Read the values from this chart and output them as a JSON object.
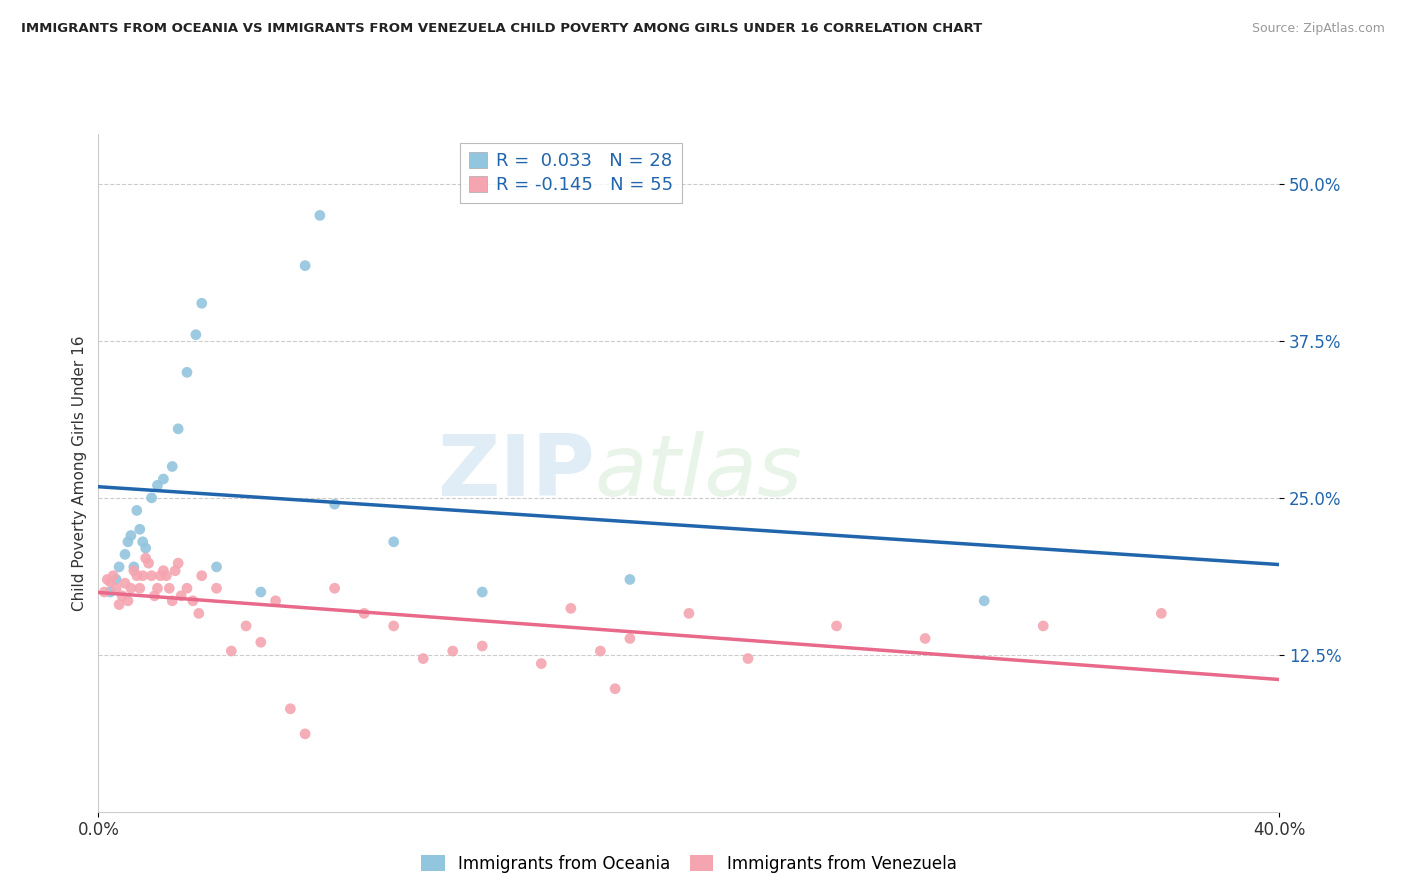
{
  "title": "IMMIGRANTS FROM OCEANIA VS IMMIGRANTS FROM VENEZUELA CHILD POVERTY AMONG GIRLS UNDER 16 CORRELATION CHART",
  "source": "Source: ZipAtlas.com",
  "ylabel": "Child Poverty Among Girls Under 16",
  "xlim": [
    0.0,
    0.4
  ],
  "ylim": [
    0.0,
    0.54
  ],
  "watermark_zip": "ZIP",
  "watermark_atlas": "atlas",
  "legend_line1": "R =  0.033   N = 28",
  "legend_line2": "R = -0.145   N = 55",
  "oceania_color": "#92c5de",
  "venezuela_color": "#f4a5b0",
  "oceania_line_color": "#2166ac",
  "venezuela_line_color": "#e8698a",
  "oceania_scatter": [
    [
      0.004,
      0.175
    ],
    [
      0.006,
      0.185
    ],
    [
      0.007,
      0.195
    ],
    [
      0.009,
      0.205
    ],
    [
      0.01,
      0.215
    ],
    [
      0.011,
      0.22
    ],
    [
      0.012,
      0.195
    ],
    [
      0.013,
      0.24
    ],
    [
      0.014,
      0.225
    ],
    [
      0.015,
      0.215
    ],
    [
      0.016,
      0.21
    ],
    [
      0.018,
      0.25
    ],
    [
      0.02,
      0.26
    ],
    [
      0.022,
      0.265
    ],
    [
      0.025,
      0.275
    ],
    [
      0.027,
      0.305
    ],
    [
      0.03,
      0.35
    ],
    [
      0.033,
      0.38
    ],
    [
      0.035,
      0.405
    ],
    [
      0.04,
      0.195
    ],
    [
      0.055,
      0.175
    ],
    [
      0.07,
      0.435
    ],
    [
      0.075,
      0.475
    ],
    [
      0.08,
      0.245
    ],
    [
      0.1,
      0.215
    ],
    [
      0.13,
      0.175
    ],
    [
      0.18,
      0.185
    ],
    [
      0.3,
      0.168
    ]
  ],
  "venezuela_scatter": [
    [
      0.002,
      0.175
    ],
    [
      0.003,
      0.185
    ],
    [
      0.004,
      0.183
    ],
    [
      0.005,
      0.188
    ],
    [
      0.006,
      0.178
    ],
    [
      0.007,
      0.165
    ],
    [
      0.008,
      0.172
    ],
    [
      0.009,
      0.182
    ],
    [
      0.01,
      0.168
    ],
    [
      0.011,
      0.178
    ],
    [
      0.012,
      0.192
    ],
    [
      0.013,
      0.188
    ],
    [
      0.014,
      0.178
    ],
    [
      0.015,
      0.188
    ],
    [
      0.016,
      0.202
    ],
    [
      0.017,
      0.198
    ],
    [
      0.018,
      0.188
    ],
    [
      0.019,
      0.172
    ],
    [
      0.02,
      0.178
    ],
    [
      0.021,
      0.188
    ],
    [
      0.022,
      0.192
    ],
    [
      0.023,
      0.188
    ],
    [
      0.024,
      0.178
    ],
    [
      0.025,
      0.168
    ],
    [
      0.026,
      0.192
    ],
    [
      0.027,
      0.198
    ],
    [
      0.028,
      0.172
    ],
    [
      0.03,
      0.178
    ],
    [
      0.032,
      0.168
    ],
    [
      0.034,
      0.158
    ],
    [
      0.035,
      0.188
    ],
    [
      0.04,
      0.178
    ],
    [
      0.045,
      0.128
    ],
    [
      0.05,
      0.148
    ],
    [
      0.055,
      0.135
    ],
    [
      0.06,
      0.168
    ],
    [
      0.065,
      0.082
    ],
    [
      0.07,
      0.062
    ],
    [
      0.08,
      0.178
    ],
    [
      0.09,
      0.158
    ],
    [
      0.1,
      0.148
    ],
    [
      0.11,
      0.122
    ],
    [
      0.12,
      0.128
    ],
    [
      0.13,
      0.132
    ],
    [
      0.15,
      0.118
    ],
    [
      0.16,
      0.162
    ],
    [
      0.17,
      0.128
    ],
    [
      0.175,
      0.098
    ],
    [
      0.18,
      0.138
    ],
    [
      0.2,
      0.158
    ],
    [
      0.22,
      0.122
    ],
    [
      0.25,
      0.148
    ],
    [
      0.28,
      0.138
    ],
    [
      0.32,
      0.148
    ],
    [
      0.36,
      0.158
    ]
  ]
}
